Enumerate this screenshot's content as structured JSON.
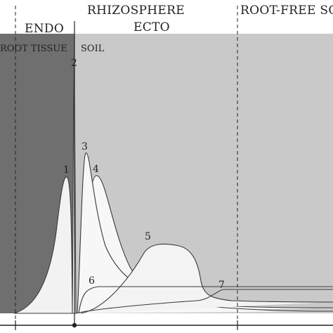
{
  "labels": {
    "endo": "ENDO",
    "rhizosphere": "RHIZOSPHERE",
    "ecto": "ECTO",
    "root_free": "ROOT-FREE SO",
    "root_tissue": "ROOT TISSUE",
    "soil": "SOIL"
  },
  "curves": [
    {
      "id": "1",
      "label": "1"
    },
    {
      "id": "2",
      "label": "2"
    },
    {
      "id": "3",
      "label": "3"
    },
    {
      "id": "4",
      "label": "4"
    },
    {
      "id": "5",
      "label": "5"
    },
    {
      "id": "6",
      "label": "6"
    },
    {
      "id": "7",
      "label": "7"
    }
  ],
  "colors": {
    "root_tissue": "#6f6f6f",
    "soil_band": "#c9c9c9",
    "curve_fill": "#f5f5f5",
    "line": "#333333"
  }
}
